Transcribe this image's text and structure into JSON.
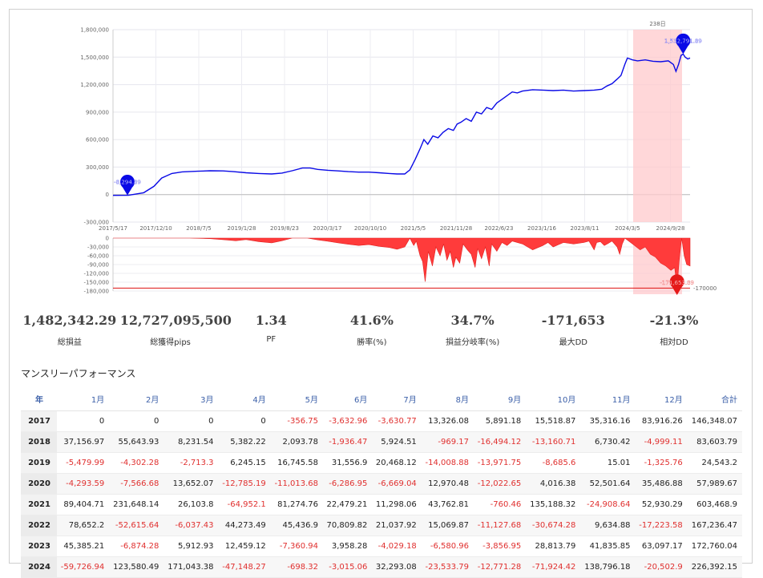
{
  "colors": {
    "equity_line": "#0a0ae6",
    "drawdown_fill": "#ff3b3b",
    "highlight": "#ffc9cc",
    "negative": "#e0302f",
    "header_text": "#3b5fa8"
  },
  "chart_data": [
    {
      "type": "line",
      "series": [
        {
          "values": [
            [
              0,
              -8294
            ],
            [
              60,
              -8000
            ],
            [
              120,
              20000
            ],
            [
              160,
              90000
            ],
            [
              190,
              180000
            ],
            [
              230,
              230000
            ],
            [
              270,
              248000
            ],
            [
              330,
              255000
            ],
            [
              380,
              260000
            ],
            [
              430,
              258000
            ],
            [
              470,
              250000
            ],
            [
              520,
              238000
            ],
            [
              570,
              230000
            ],
            [
              620,
              225000
            ],
            [
              660,
              235000
            ],
            [
              700,
              260000
            ],
            [
              740,
              290000
            ],
            [
              770,
              290000
            ],
            [
              800,
              275000
            ],
            [
              840,
              265000
            ],
            [
              880,
              258000
            ],
            [
              920,
              250000
            ],
            [
              960,
              245000
            ],
            [
              1000,
              245000
            ],
            [
              1040,
              238000
            ],
            [
              1080,
              230000
            ],
            [
              1110,
              225000
            ],
            [
              1140,
              225000
            ],
            [
              1160,
              270000
            ],
            [
              1180,
              380000
            ],
            [
              1200,
              500000
            ],
            [
              1215,
              600000
            ],
            [
              1230,
              550000
            ],
            [
              1250,
              640000
            ],
            [
              1270,
              620000
            ],
            [
              1290,
              680000
            ],
            [
              1310,
              720000
            ],
            [
              1330,
              700000
            ],
            [
              1345,
              770000
            ],
            [
              1360,
              790000
            ],
            [
              1380,
              830000
            ],
            [
              1400,
              800000
            ],
            [
              1420,
              900000
            ],
            [
              1440,
              880000
            ],
            [
              1460,
              950000
            ],
            [
              1480,
              930000
            ],
            [
              1500,
              1000000
            ],
            [
              1520,
              1040000
            ],
            [
              1540,
              1080000
            ],
            [
              1560,
              1120000
            ],
            [
              1580,
              1110000
            ],
            [
              1600,
              1130000
            ],
            [
              1640,
              1145000
            ],
            [
              1680,
              1140000
            ],
            [
              1720,
              1135000
            ],
            [
              1760,
              1140000
            ],
            [
              1800,
              1130000
            ],
            [
              1840,
              1135000
            ],
            [
              1880,
              1140000
            ],
            [
              1910,
              1150000
            ],
            [
              1930,
              1185000
            ],
            [
              1950,
              1210000
            ],
            [
              1970,
              1260000
            ],
            [
              1985,
              1300000
            ],
            [
              2000,
              1420000
            ],
            [
              2010,
              1490000
            ],
            [
              2030,
              1470000
            ],
            [
              2050,
              1460000
            ],
            [
              2080,
              1470000
            ],
            [
              2110,
              1455000
            ],
            [
              2140,
              1450000
            ],
            [
              2170,
              1460000
            ],
            [
              2190,
              1420000
            ],
            [
              2200,
              1345000
            ],
            [
              2210,
              1420000
            ],
            [
              2220,
              1520000
            ],
            [
              2228,
              1532791
            ],
            [
              2236,
              1500000
            ],
            [
              2246,
              1480000
            ],
            [
              2255,
              1490000
            ]
          ]
        }
      ],
      "x_ticks": [
        "2017/5/17",
        "2017/12/10",
        "2018/7/5",
        "2019/1/28",
        "2019/8/23",
        "2020/3/17",
        "2020/10/10",
        "2021/5/5",
        "2021/11/28",
        "2022/6/23",
        "2023/1/16",
        "2023/8/11",
        "2024/3/5",
        "2024/9/28"
      ],
      "y_ticks": [
        "1,800,000",
        "1,500,000",
        "1,200,000",
        "900,000",
        "600,000",
        "300,000",
        "0",
        "-300,000"
      ],
      "ylim": [
        -300000,
        1800000
      ],
      "highlight_label": "238日",
      "start_marker_label": "-8,294.89",
      "peak_marker_label": "1,532,791.89"
    },
    {
      "type": "area",
      "series": [
        {
          "values": [
            [
              0,
              0
            ],
            [
              120,
              0
            ],
            [
              300,
              0
            ],
            [
              380,
              -2000
            ],
            [
              440,
              -6000
            ],
            [
              480,
              -9000
            ],
            [
              520,
              -5000
            ],
            [
              570,
              -12000
            ],
            [
              620,
              -16000
            ],
            [
              660,
              -9000
            ],
            [
              700,
              0
            ],
            [
              760,
              0
            ],
            [
              800,
              -6000
            ],
            [
              840,
              -11000
            ],
            [
              880,
              -16000
            ],
            [
              920,
              -21000
            ],
            [
              960,
              -25000
            ],
            [
              1000,
              -22000
            ],
            [
              1040,
              -28000
            ],
            [
              1080,
              -32000
            ],
            [
              1110,
              -38000
            ],
            [
              1140,
              -30000
            ],
            [
              1160,
              0
            ],
            [
              1175,
              -25000
            ],
            [
              1185,
              -10000
            ],
            [
              1200,
              -60000
            ],
            [
              1210,
              -80000
            ],
            [
              1220,
              -148000
            ],
            [
              1232,
              -45000
            ],
            [
              1248,
              -95000
            ],
            [
              1262,
              -30000
            ],
            [
              1278,
              -60000
            ],
            [
              1292,
              -20000
            ],
            [
              1305,
              -75000
            ],
            [
              1318,
              -45000
            ],
            [
              1330,
              -100000
            ],
            [
              1340,
              -65000
            ],
            [
              1355,
              -85000
            ],
            [
              1368,
              -20000
            ],
            [
              1385,
              -40000
            ],
            [
              1400,
              -55000
            ],
            [
              1415,
              -100000
            ],
            [
              1425,
              -35000
            ],
            [
              1440,
              -70000
            ],
            [
              1455,
              -30000
            ],
            [
              1470,
              -95000
            ],
            [
              1480,
              -20000
            ],
            [
              1500,
              -45000
            ],
            [
              1520,
              -15000
            ],
            [
              1540,
              -25000
            ],
            [
              1560,
              -10000
            ],
            [
              1600,
              -20000
            ],
            [
              1640,
              -40000
            ],
            [
              1680,
              -25000
            ],
            [
              1700,
              -15000
            ],
            [
              1720,
              -30000
            ],
            [
              1760,
              -15000
            ],
            [
              1800,
              -20000
            ],
            [
              1840,
              -15000
            ],
            [
              1860,
              -10000
            ],
            [
              1880,
              -40000
            ],
            [
              1890,
              -15000
            ],
            [
              1905,
              -12000
            ],
            [
              1920,
              -25000
            ],
            [
              1935,
              -18000
            ],
            [
              1950,
              -10000
            ],
            [
              1970,
              -30000
            ],
            [
              1980,
              -55000
            ],
            [
              1990,
              -20000
            ],
            [
              2000,
              0
            ],
            [
              2030,
              -20000
            ],
            [
              2060,
              -40000
            ],
            [
              2080,
              -30000
            ],
            [
              2100,
              -55000
            ],
            [
              2120,
              -65000
            ],
            [
              2140,
              -85000
            ],
            [
              2160,
              -95000
            ],
            [
              2180,
              -110000
            ],
            [
              2195,
              -100000
            ],
            [
              2204,
              -171653
            ],
            [
              2212,
              -80000
            ],
            [
              2222,
              0
            ],
            [
              2232,
              -60000
            ],
            [
              2242,
              -90000
            ],
            [
              2255,
              -95000
            ]
          ]
        }
      ],
      "y_ticks": [
        "0",
        "-30,000",
        "-60,000",
        "-90,000",
        "-120,000",
        "-150,000",
        "-180,000"
      ],
      "ylim": [
        -180000,
        0
      ],
      "reference_value": -170000,
      "reference_label": "-170000",
      "trough_marker_label": "-171,653.89"
    }
  ],
  "stats": [
    {
      "value": "1,482,342.29",
      "label": "総損益"
    },
    {
      "value": "12,727,095,500",
      "label": "総獲得pips"
    },
    {
      "value": "1.34",
      "label": "PF"
    },
    {
      "value": "41.6%",
      "label": "勝率(%)"
    },
    {
      "value": "34.7%",
      "label": "損益分岐率(%)"
    },
    {
      "value": "-171,653",
      "label": "最大DD"
    },
    {
      "value": "-21.3%",
      "label": "相対DD"
    }
  ],
  "monthly": {
    "title": "マンスリーパフォーマンス",
    "headers": [
      "年",
      "1月",
      "2月",
      "3月",
      "4月",
      "5月",
      "6月",
      "7月",
      "8月",
      "9月",
      "10月",
      "11月",
      "12月",
      "合計"
    ],
    "rows": [
      [
        "2017",
        "0",
        "0",
        "0",
        "0",
        "-356.75",
        "-3,632.96",
        "-3,630.77",
        "13,326.08",
        "5,891.18",
        "15,518.87",
        "35,316.16",
        "83,916.26",
        "146,348.07"
      ],
      [
        "2018",
        "37,156.97",
        "55,643.93",
        "8,231.54",
        "5,382.22",
        "2,093.78",
        "-1,936.47",
        "5,924.51",
        "-969.17",
        "-16,494.12",
        "-13,160.71",
        "6,730.42",
        "-4,999.11",
        "83,603.79"
      ],
      [
        "2019",
        "-5,479.99",
        "-4,302.28",
        "-2,713.3",
        "6,245.15",
        "16,745.58",
        "31,556.9",
        "20,468.12",
        "-14,008.88",
        "-13,971.75",
        "-8,685.6",
        "15.01",
        "-1,325.76",
        "24,543.2"
      ],
      [
        "2020",
        "-4,293.59",
        "-7,566.68",
        "13,652.07",
        "-12,785.19",
        "-11,013.68",
        "-6,286.95",
        "-6,669.04",
        "12,970.48",
        "-12,022.65",
        "4,016.38",
        "52,501.64",
        "35,486.88",
        "57,989.67"
      ],
      [
        "2021",
        "89,404.71",
        "231,648.14",
        "26,103.8",
        "-64,952.1",
        "81,274.76",
        "22,479.21",
        "11,298.06",
        "43,762.81",
        "-760.46",
        "135,188.32",
        "-24,908.64",
        "52,930.29",
        "603,468.9"
      ],
      [
        "2022",
        "78,652.2",
        "-52,615.64",
        "-6,037.43",
        "44,273.49",
        "45,436.9",
        "70,809.82",
        "21,037.92",
        "15,069.87",
        "-11,127.68",
        "-30,674.28",
        "9,634.88",
        "-17,223.58",
        "167,236.47"
      ],
      [
        "2023",
        "45,385.21",
        "-6,874.28",
        "5,912.93",
        "12,459.12",
        "-7,360.94",
        "3,958.28",
        "-4,029.18",
        "-6,580.96",
        "-3,856.95",
        "28,813.79",
        "41,835.85",
        "63,097.17",
        "172,760.04"
      ],
      [
        "2024",
        "-59,726.94",
        "123,580.49",
        "171,043.38",
        "-47,148.27",
        "-698.32",
        "-3,015.06",
        "32,293.08",
        "-23,533.79",
        "-12,771.28",
        "-71,924.42",
        "138,796.18",
        "-20,502.9",
        "226,392.15"
      ]
    ]
  }
}
